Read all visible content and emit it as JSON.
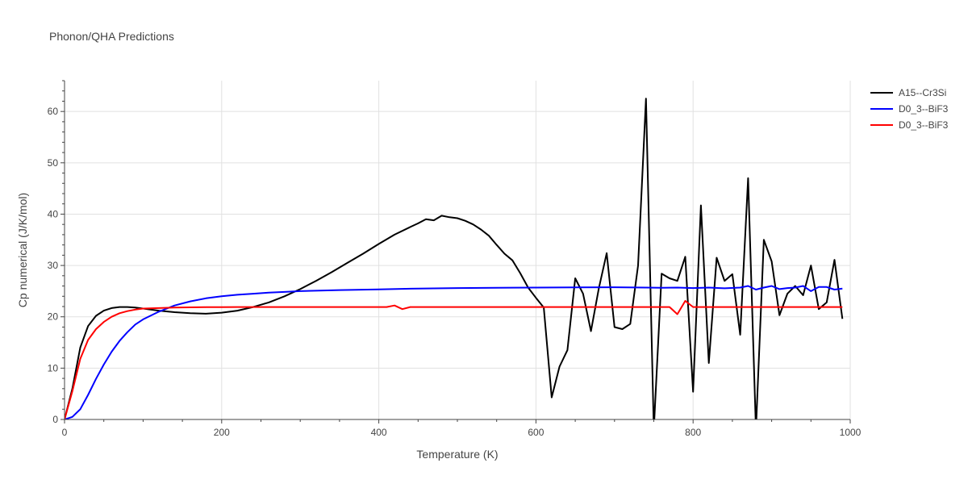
{
  "chart_data": {
    "type": "line",
    "title": "Phonon/QHA Predictions",
    "xlabel": "Temperature (K)",
    "ylabel": "Cp numerical (J/K/mol)",
    "xlim": [
      0,
      1000
    ],
    "ylim": [
      0,
      66
    ],
    "xticks": [
      0,
      200,
      400,
      600,
      800,
      1000
    ],
    "yticks": [
      0,
      10,
      20,
      30,
      40,
      50,
      60
    ],
    "grid": true,
    "legend_position": "top-right",
    "series": [
      {
        "name": "A15--Cr3Si",
        "color": "#000000",
        "x": [
          0,
          10,
          20,
          30,
          40,
          50,
          60,
          70,
          80,
          90,
          100,
          120,
          140,
          160,
          180,
          200,
          220,
          240,
          260,
          280,
          300,
          320,
          340,
          360,
          380,
          400,
          420,
          440,
          450,
          460,
          470,
          480,
          490,
          500,
          510,
          520,
          530,
          540,
          550,
          560,
          570,
          580,
          590,
          600,
          610,
          620,
          630,
          640,
          650,
          660,
          670,
          680,
          690,
          700,
          710,
          720,
          730,
          740,
          750,
          760,
          770,
          780,
          790,
          800,
          810,
          820,
          830,
          840,
          850,
          860,
          870,
          880,
          890,
          900,
          910,
          920,
          930,
          940,
          950,
          960,
          970,
          980,
          990
        ],
        "y": [
          0,
          6,
          14,
          18.2,
          20.2,
          21.2,
          21.7,
          21.9,
          21.9,
          21.8,
          21.6,
          21.2,
          20.9,
          20.7,
          20.6,
          20.8,
          21.2,
          21.9,
          22.8,
          24,
          25.4,
          27,
          28.7,
          30.5,
          32.3,
          34.2,
          36,
          37.5,
          38.2,
          39,
          38.8,
          39.7,
          39.4,
          39.2,
          38.7,
          38,
          37,
          35.8,
          34,
          32.3,
          31,
          28.5,
          25.7,
          23.7,
          21.8,
          4.3,
          10.3,
          13.5,
          27.5,
          24.5,
          17.2,
          25.5,
          32.4,
          18,
          17.6,
          18.6,
          30,
          62.5,
          -2,
          28.4,
          27.5,
          27,
          31.7,
          5.4,
          41.7,
          11,
          31.5,
          27,
          28.3,
          16.5,
          47,
          -2,
          35,
          30.8,
          20.3,
          24.5,
          26,
          24.2,
          30,
          21.5,
          22.8,
          31.1,
          19.6
        ]
      },
      {
        "name": "D0_3--BiF3",
        "color": "#0000ff",
        "x": [
          0,
          10,
          20,
          30,
          40,
          50,
          60,
          70,
          80,
          90,
          100,
          120,
          140,
          160,
          180,
          200,
          220,
          240,
          260,
          280,
          300,
          350,
          400,
          450,
          500,
          550,
          600,
          650,
          700,
          740,
          760,
          780,
          800,
          820,
          840,
          860,
          870,
          880,
          890,
          900,
          910,
          920,
          930,
          940,
          950,
          960,
          970,
          980,
          990
        ],
        "y": [
          0,
          0.5,
          2,
          4.8,
          7.9,
          10.7,
          13.2,
          15.3,
          17,
          18.5,
          19.5,
          21,
          22.2,
          23,
          23.6,
          24,
          24.3,
          24.5,
          24.7,
          24.85,
          25,
          25.2,
          25.35,
          25.5,
          25.6,
          25.65,
          25.7,
          25.72,
          25.75,
          25.7,
          25.65,
          25.7,
          25.6,
          25.7,
          25.55,
          25.7,
          26,
          25.3,
          25.7,
          26,
          25.4,
          25.6,
          25.7,
          26,
          25,
          25.8,
          25.8,
          25.3,
          25.5
        ]
      },
      {
        "name": "D0_3--BiF3",
        "color": "#ff0000",
        "x": [
          0,
          10,
          20,
          30,
          40,
          50,
          60,
          70,
          80,
          90,
          100,
          120,
          140,
          160,
          180,
          200,
          220,
          240,
          260,
          280,
          300,
          350,
          400,
          410,
          420,
          430,
          440,
          450,
          500,
          550,
          600,
          650,
          700,
          750,
          770,
          780,
          790,
          800,
          810,
          850,
          900,
          950,
          990
        ],
        "y": [
          0,
          5.5,
          11.8,
          15.5,
          17.6,
          19,
          20,
          20.7,
          21.1,
          21.4,
          21.6,
          21.7,
          21.8,
          21.85,
          21.87,
          21.88,
          21.9,
          21.9,
          21.9,
          21.9,
          21.9,
          21.9,
          21.9,
          21.9,
          22.2,
          21.5,
          21.9,
          21.9,
          21.9,
          21.9,
          21.9,
          21.9,
          21.9,
          21.9,
          21.9,
          20.5,
          23.1,
          21.9,
          21.9,
          21.9,
          21.9,
          21.9,
          21.9
        ]
      }
    ]
  }
}
